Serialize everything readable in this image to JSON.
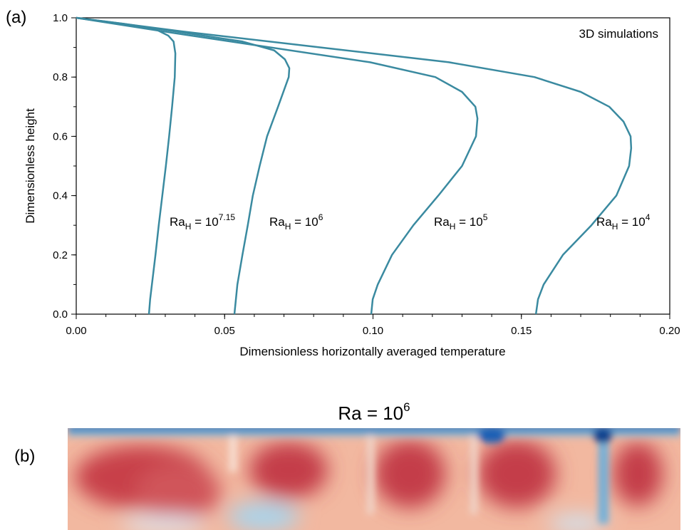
{
  "chart_data": {
    "type": "line",
    "panel_label": "(a)",
    "annotation": "3D simulations",
    "annotation_color": "#3a8aa0",
    "xlabel": "Dimensionless horizontally averaged temperature",
    "ylabel": "Dimensionless height",
    "xlim": [
      0,
      0.2
    ],
    "ylim": [
      0,
      1
    ],
    "xticks": [
      {
        "value": 0,
        "label": "0.00"
      },
      {
        "value": 0.05,
        "label": "0.05"
      },
      {
        "value": 0.1,
        "label": "0.10"
      },
      {
        "value": 0.15,
        "label": "0.15"
      },
      {
        "value": 0.2,
        "label": "0.20"
      }
    ],
    "yticks": [
      {
        "value": 0,
        "label": "0.0"
      },
      {
        "value": 0.2,
        "label": "0.2"
      },
      {
        "value": 0.4,
        "label": "0.4"
      },
      {
        "value": 0.6,
        "label": "0.6"
      },
      {
        "value": 0.8,
        "label": "0.8"
      },
      {
        "value": 1,
        "label": "1.0"
      }
    ],
    "series": [
      {
        "color": "#3a8aa0",
        "label": {
          "base": "Ra",
          "sub": "H",
          "mid": " = 10",
          "sup": "7.15"
        },
        "x": [
          0.0245,
          0.0249,
          0.0255,
          0.0267,
          0.0278,
          0.029,
          0.0302,
          0.0313,
          0.0323,
          0.0332,
          0.0334,
          0.0328,
          0.031,
          0.027,
          0.014,
          0
        ],
        "values": [
          0,
          0.05,
          0.1,
          0.2,
          0.3,
          0.4,
          0.5,
          0.6,
          0.7,
          0.8,
          0.88,
          0.92,
          0.94,
          0.96,
          0.98,
          1
        ]
      },
      {
        "color": "#3a8aa0",
        "label": {
          "base": "Ra",
          "sub": "H",
          "mid": " = 10",
          "sup": "6"
        },
        "x": [
          0.0533,
          0.0538,
          0.0543,
          0.056,
          0.0578,
          0.0595,
          0.0618,
          0.0643,
          0.068,
          0.0716,
          0.0718,
          0.0703,
          0.0667,
          0.056,
          0.036,
          0.016,
          0
        ],
        "values": [
          0,
          0.05,
          0.1,
          0.2,
          0.3,
          0.4,
          0.5,
          0.6,
          0.7,
          0.8,
          0.83,
          0.86,
          0.89,
          0.92,
          0.95,
          0.98,
          1
        ]
      },
      {
        "color": "#3a8aa0",
        "label": {
          "base": "Ra",
          "sub": "H",
          "mid": " = 10",
          "sup": "5"
        },
        "x": [
          0.0994,
          0.0999,
          0.1016,
          0.1064,
          0.1136,
          0.122,
          0.13,
          0.1347,
          0.1352,
          0.1345,
          0.13,
          0.121,
          0.099,
          0.0655,
          0.032,
          0
        ],
        "values": [
          0,
          0.05,
          0.1,
          0.2,
          0.3,
          0.4,
          0.5,
          0.6,
          0.66,
          0.7,
          0.75,
          0.8,
          0.85,
          0.9,
          0.95,
          1
        ]
      },
      {
        "color": "#3a8aa0",
        "label": {
          "base": "Ra",
          "sub": "H",
          "mid": " = 10",
          "sup": "4"
        },
        "x": [
          0.1549,
          0.1556,
          0.1575,
          0.164,
          0.1736,
          0.182,
          0.1863,
          0.187,
          0.1868,
          0.1844,
          0.1796,
          0.17,
          0.1544,
          0.1256,
          0.0824,
          0.039,
          0
        ],
        "values": [
          0,
          0.05,
          0.1,
          0.2,
          0.3,
          0.4,
          0.5,
          0.56,
          0.6,
          0.65,
          0.7,
          0.75,
          0.8,
          0.85,
          0.9,
          0.95,
          1
        ]
      }
    ]
  },
  "panel_b": {
    "label": "(b)",
    "title": {
      "base": "Ra = 10",
      "sup": "6"
    }
  }
}
